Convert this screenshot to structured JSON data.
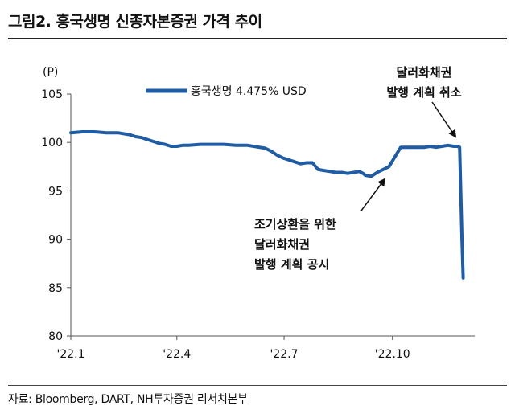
{
  "title": "그림2. 흥국생명 신종자본증권 가격 추이",
  "source": "자료: Bloomberg, DART, NH투자증권 리서치본부",
  "chart_data": {
    "type": "line",
    "ylabel": "(P)",
    "ylim": [
      80,
      105
    ],
    "yticks": [
      80,
      85,
      90,
      95,
      100,
      105
    ],
    "xlim": [
      0,
      336
    ],
    "xticks": [
      {
        "pos": 0,
        "label": "'22.1"
      },
      {
        "pos": 90,
        "label": "'22.4"
      },
      {
        "pos": 181,
        "label": "'22.7"
      },
      {
        "pos": 273,
        "label": "'22.10"
      }
    ],
    "legend": "top-left",
    "series": [
      {
        "name": "흥국생명 4.475% USD",
        "color": "#1f5ca3",
        "x": [
          0,
          10,
          20,
          30,
          40,
          50,
          55,
          60,
          65,
          70,
          75,
          80,
          85,
          90,
          95,
          100,
          110,
          120,
          130,
          140,
          150,
          160,
          165,
          170,
          175,
          180,
          190,
          195,
          200,
          205,
          210,
          215,
          220,
          225,
          230,
          235,
          240,
          245,
          248,
          250,
          255,
          260,
          270,
          280,
          290,
          300,
          305,
          310,
          315,
          320,
          325,
          328,
          330,
          332,
          333
        ],
        "values": [
          101.0,
          101.1,
          101.1,
          101.0,
          101.0,
          100.8,
          100.6,
          100.5,
          100.3,
          100.1,
          99.9,
          99.8,
          99.6,
          99.6,
          99.7,
          99.7,
          99.8,
          99.8,
          99.8,
          99.7,
          99.7,
          99.5,
          99.4,
          99.1,
          98.7,
          98.4,
          98.0,
          97.8,
          97.9,
          97.9,
          97.2,
          97.1,
          97.0,
          96.9,
          96.9,
          96.8,
          96.9,
          97.0,
          96.8,
          96.6,
          96.5,
          96.9,
          97.5,
          99.5,
          99.5,
          99.5,
          99.6,
          99.5,
          99.6,
          99.7,
          99.6,
          99.6,
          99.5,
          90.0,
          86.0
        ]
      }
    ],
    "annotations": [
      {
        "text": [
          "달러화채권",
          "발행 계획 취소"
        ]
      },
      {
        "text": [
          "조기상환을 위한",
          "달러화채권",
          "발행 계획 공시"
        ]
      }
    ]
  }
}
